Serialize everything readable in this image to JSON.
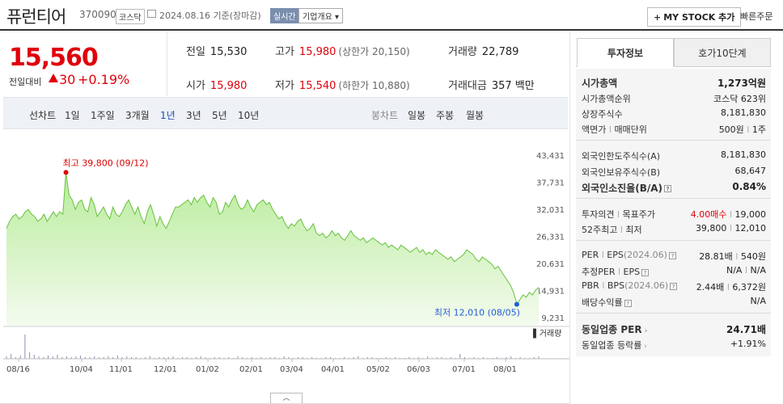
{
  "header": {
    "name": "퓨런티어",
    "code": "370090",
    "market": "코스닥",
    "date": "2024.08.16",
    "basis": "기준(장마감)",
    "realtime": "실시간",
    "corp_info": "기업개요",
    "mystock": "MY STOCK 추가",
    "quick_order": "빠른주문"
  },
  "price": {
    "current": "15,560",
    "change_label": "전일대비",
    "change": "30",
    "change_pct": "+0.19%"
  },
  "quotes": {
    "prev_label": "전일",
    "prev": "15,530",
    "high_label": "고가",
    "high": "15,980",
    "upper_limit": "(상한가 20,150)",
    "volume_label": "거래량",
    "volume": "22,789",
    "open_label": "시가",
    "open": "15,980",
    "low_label": "저가",
    "low": "15,540",
    "lower_limit": "(하한가 10,880)",
    "amount_label": "거래대금",
    "amount": "357 백만"
  },
  "period": {
    "line_chart": "선차트",
    "items": [
      "1일",
      "1주일",
      "3개월",
      "1년",
      "3년",
      "5년",
      "10년"
    ],
    "selected": "1년",
    "candle": "봉차트",
    "candle_items": [
      "일봉",
      "주봉",
      "월봉"
    ]
  },
  "chart_data": {
    "type": "area",
    "y_ticks": [
      "43,431",
      "37,731",
      "32,031",
      "26,331",
      "20,631",
      "14,931",
      "9,231"
    ],
    "ylim": [
      9231,
      43431
    ],
    "x_ticks": [
      "08/16",
      "10/04",
      "11/01",
      "12/01",
      "01/02",
      "02/01",
      "03/04",
      "04/01",
      "05/02",
      "06/03",
      "07/01",
      "08/01"
    ],
    "max_label": "최고 39,800 (09/12)",
    "min_label": "최저 12,010 (08/05)",
    "volume_label": "거래량",
    "series": [
      {
        "values": [
          28000,
          29500,
          30500,
          31000,
          30000,
          30500,
          31500,
          32000,
          31000,
          30500,
          29500,
          30000,
          31000,
          29500,
          30500,
          31500,
          30500,
          31500,
          31000,
          39800,
          35000,
          34000,
          32000,
          33500,
          34000,
          32000,
          31500,
          34500,
          33000,
          30500,
          31500,
          32500,
          31000,
          30000,
          32500,
          31000,
          30500,
          31500,
          33000,
          34000,
          32500,
          31000,
          32500,
          30500,
          29000,
          31500,
          33000,
          31000,
          28500,
          30500,
          29000,
          28000,
          29500,
          31000,
          32500,
          32500,
          33000,
          33500,
          34000,
          33000,
          34500,
          33500,
          34500,
          35000,
          33500,
          32500,
          34500,
          33500,
          31000,
          31500,
          33500,
          32500,
          34000,
          35000,
          33000,
          32000,
          32500,
          34000,
          32500,
          31500,
          33000,
          33500,
          34000,
          33000,
          33500,
          32000,
          31000,
          30000,
          30500,
          29000,
          28000,
          29000,
          28500,
          29500,
          30000,
          28500,
          27500,
          28000,
          29000,
          27000,
          26500,
          27000,
          26000,
          26500,
          27500,
          26500,
          27000,
          26000,
          25500,
          26500,
          27500,
          26500,
          26000,
          25500,
          26000,
          25000,
          25500,
          26000,
          25500,
          25000,
          24500,
          25000,
          24000,
          24500,
          24000,
          23500,
          24500,
          24000,
          23500,
          23000,
          23500,
          24000,
          23000,
          23500,
          22500,
          23000,
          22500,
          23500,
          23000,
          22500,
          22000,
          21500,
          22000,
          21000,
          21500,
          22000,
          22500,
          23500,
          23000,
          22500,
          21500,
          21000,
          22000,
          21500,
          21000,
          20500,
          19500,
          20000,
          19000,
          18000,
          17000,
          16000,
          14500,
          12010,
          13000,
          14000,
          13500,
          14500,
          14000,
          15000,
          15560
        ]
      }
    ]
  },
  "panel": {
    "tab_active": "투자정보",
    "tab_other": "호가10단계",
    "rows": {
      "mcap_l": "시가총액",
      "mcap_v": "1,273억원",
      "rank_l": "시가총액순위",
      "rank_v": "코스닥 623위",
      "shares_l": "상장주식수",
      "shares_v": "8,181,830",
      "face_l": "액면가",
      "face_sep": "l",
      "unit_l": "매매단위",
      "face_v": "500원",
      "unit_v": "1주",
      "fl_l": "외국인한도주식수(A)",
      "fl_v": "8,181,830",
      "fh_l": "외국인보유주식수(B)",
      "fh_v": "68,647",
      "fr_l": "외국인소진율(B/A)",
      "fr_v": "0.84%",
      "op_l": "투자의견",
      "tp_l": "목표주가",
      "op_v": "4.00매수",
      "tp_v": "19,000",
      "w52_l": "52주최고",
      "w52lo_l": "최저",
      "w52_v": "39,800",
      "w52lo_v": "12,010",
      "per_l": "PER",
      "eps_l": "EPS",
      "eps_date": "(2024.06)",
      "per_v": "28.81배",
      "eps_v": "540원",
      "eper_l": "추정PER",
      "eeps_l": "EPS",
      "eper_v": "N/A",
      "eeps_v": "N/A",
      "pbr_l": "PBR",
      "bps_l": "BPS",
      "bps_date": "(2024.06)",
      "pbr_v": "2.44배",
      "bps_v": "6,372원",
      "div_l": "배당수익률",
      "div_v": "N/A",
      "ind_per_l": "동일업종 PER",
      "ind_per_v": "24.71배",
      "ind_chg_l": "동일업종 등락률",
      "ind_chg_v": "+1.91%"
    }
  }
}
